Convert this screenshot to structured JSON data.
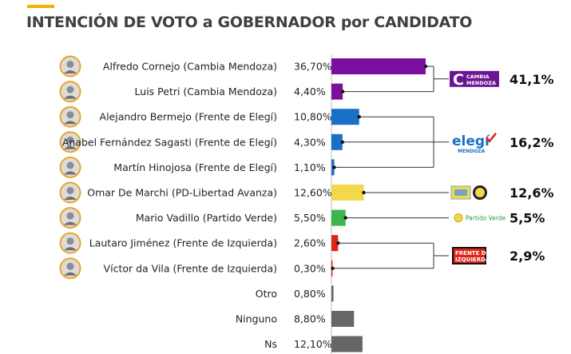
{
  "title": "INTENCIÓN DE VOTO a GOBERNADOR por CANDIDATO",
  "colors": {
    "accent": "#f2b400",
    "title": "#404040",
    "cambia_mendoza": "#7a0fa0",
    "frente_elegi": "#1a6fc6",
    "pd": "#f2d84a",
    "partido_verde": "#3cb54a",
    "frente_izquierda": "#e2231a",
    "other": "#666666",
    "axis": "#bdbdbd"
  },
  "chart_data": {
    "type": "bar",
    "orientation": "horizontal",
    "categories": [
      "Alfredo Cornejo (Cambia Mendoza)",
      "Luis Petri (Cambia Mendoza)",
      "Alejandro Bermejo (Frente de Elegí)",
      "Anabel Fernández Sagasti (Frente de Elegí)",
      "Martín Hinojosa (Frente de Elegí)",
      "Omar De Marchi (PD-Libertad Avanza)",
      "Mario Vadillo (Partido Verde)",
      "Lautaro Jiménez (Frente de Izquierda)",
      "Víctor da Vila (Frente de Izquierda)",
      "Otro",
      "Ninguno",
      "Ns"
    ],
    "values": [
      36.7,
      4.4,
      10.8,
      4.3,
      1.1,
      12.6,
      5.5,
      2.6,
      0.3,
      0.8,
      8.8,
      12.1
    ],
    "value_labels": [
      "36,70%",
      "4,40%",
      "10,80%",
      "4,30%",
      "1,10%",
      "12,60%",
      "5,50%",
      "2,60%",
      "0,30%",
      "0,80%",
      "8,80%",
      "12,10%"
    ],
    "bar_colors": [
      "#7a0fa0",
      "#7a0fa0",
      "#1a6fc6",
      "#1a6fc6",
      "#1a6fc6",
      "#f2d84a",
      "#3cb54a",
      "#e2231a",
      "#e2231a",
      "#666666",
      "#666666",
      "#666666"
    ],
    "has_photo": [
      true,
      true,
      true,
      true,
      true,
      true,
      true,
      true,
      true,
      false,
      false,
      false
    ],
    "groups": [
      {
        "name": "Cambia Mendoza",
        "rows": [
          0,
          1
        ],
        "total_label": "41,1%",
        "logo": "cambia-mendoza-logo",
        "logo_text": "CAMBIA MENDOZA"
      },
      {
        "name": "Frente de Elegí",
        "rows": [
          2,
          3,
          4
        ],
        "total_label": "16,2%",
        "logo": "elegi-logo",
        "logo_text": "elegí",
        "logo_subtext": "MENDOZA"
      },
      {
        "name": "PD-Libertad Avanza",
        "rows": [
          5
        ],
        "total_label": "12,6%",
        "logo": "pd-libertad-logo"
      },
      {
        "name": "Partido Verde",
        "rows": [
          6
        ],
        "total_label": "5,5%",
        "logo": "partido-verde-logo",
        "logo_text": "Partido Verde"
      },
      {
        "name": "Frente de Izquierda",
        "rows": [
          7,
          8
        ],
        "total_label": "2,9%",
        "logo": "frente-izquierda-logo",
        "logo_text": "FRENTE DE IZQUIERDA"
      }
    ],
    "legend": "none",
    "grid": false
  }
}
